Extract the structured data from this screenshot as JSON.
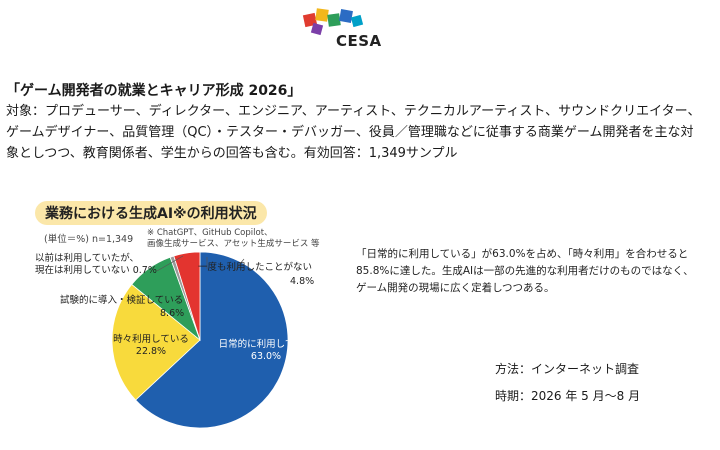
{
  "header": {
    "logo_text": "CESA"
  },
  "report": {
    "title": "「ゲーム開発者の就業とキャリア形成 2026」",
    "description": "対象：プロデューサー、ディレクター、エンジニア、アーティスト、テクニカルアーティスト、サウンドクリエイター、ゲームデザイナー、品質管理（QC）・テスター・デバッガー、役員／管理職などに従事する商業ゲーム開発者を主な対象としつつ、教育関係者、学生からの回答も含む。有効回答：1,349サンプル"
  },
  "chart_data": {
    "type": "pie",
    "title": "業務における生成AI※の利用状況",
    "unit_label": "(単位＝%) n=1,349",
    "note_lines": [
      "※ ChatGPT、GitHub Copilot、",
      "画像生成サービス、アセット生成サービス 等"
    ],
    "slices": [
      {
        "label": "日常的に利用している",
        "value": 63.0,
        "value_label": "63.0%",
        "color": "#1f5fae"
      },
      {
        "label": "時々利用している",
        "value": 22.8,
        "value_label": "22.8%",
        "color": "#f8da3c"
      },
      {
        "label": "試験的に導入・検証している",
        "value": 8.6,
        "value_label": "8.6%",
        "color": "#2e9e5a"
      },
      {
        "label": "以前は利用していたが、現在は利用していない",
        "value": 0.7,
        "value_label": "0.7%",
        "color": "#9a9a9a"
      },
      {
        "label": "一度も利用したことがない",
        "value": 4.8,
        "value_label": "4.8%",
        "color": "#e3342f"
      }
    ]
  },
  "labels": {
    "daily_line1": "日常的に利用している",
    "daily_line2": "63.0%",
    "sometimes_line1": "時々利用している",
    "sometimes_line2": "22.8%",
    "trial_line1": "試験的に導入・検証している",
    "trial_line2": "8.6%",
    "former_line1": "以前は利用していたが、",
    "former_line2": "現在は利用していない 0.7%",
    "never_line1": "一度も利用したことがない",
    "never_line2": "4.8%"
  },
  "summary": "「日常的に利用している」が63.0%を占め、「時々利用」を合わせると85.8%に達した。生成AIは一部の先進的な利用者だけのものではなく、ゲーム開発の現場に広く定着しつつある。",
  "footer": {
    "method": "方法：インターネット調査",
    "period": "時期：2026 年 5 月〜8 月"
  }
}
